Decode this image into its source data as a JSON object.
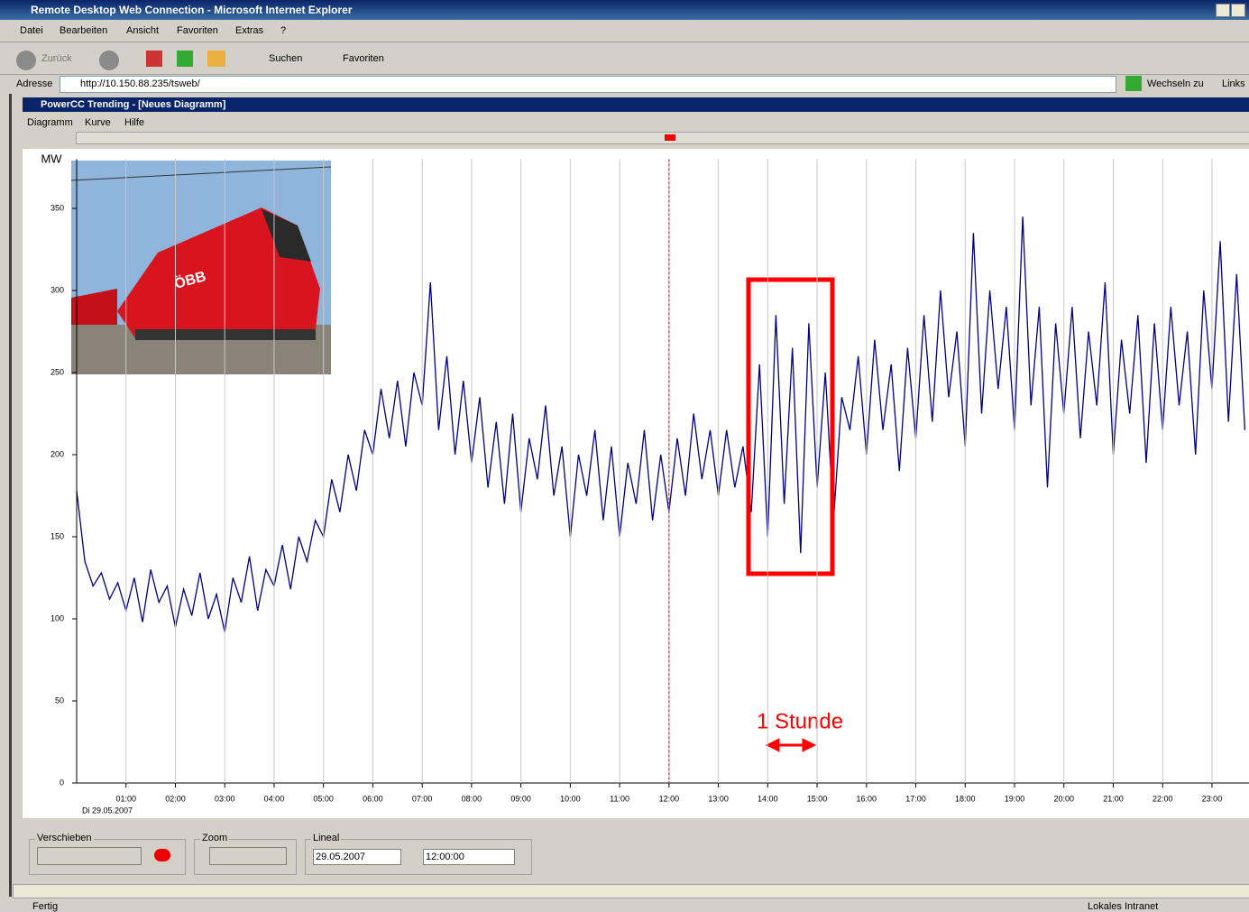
{
  "window": {
    "title": "Remote Desktop Web Connection - Microsoft Internet Explorer",
    "menu": [
      "Datei",
      "Bearbeiten",
      "Ansicht",
      "Favoriten",
      "Extras",
      "?"
    ],
    "toolbar": {
      "back": "Zurück",
      "search": "Suchen",
      "favorites": "Favoriten"
    },
    "address_label": "Adresse",
    "address": "http://10.150.88.235/tsweb/",
    "go": "Wechseln zu",
    "links": "Links",
    "status": "Fertig",
    "zone": "Lokales Intranet"
  },
  "app": {
    "title": "PowerCC Trending - [Neues Diagramm]",
    "menu": [
      "Diagramm",
      "Kurve",
      "Hilfe"
    ],
    "controls": {
      "shift": "Verschieben",
      "zoom": "Zoom",
      "ruler": "Lineal",
      "date": "29.05.2007",
      "time": "12:00:00"
    }
  },
  "chart_data": {
    "type": "line",
    "y_label": "MW",
    "x_sublabel": "Di 29.05.2007",
    "annotation": "1 Stunde",
    "color": "#000080",
    "grid": "x",
    "cursor_x": 720,
    "xlim": [
      0,
      1425
    ],
    "ylim": [
      0,
      380
    ],
    "xticks": [
      {
        "value": 60,
        "label": "01:00"
      },
      {
        "value": 120,
        "label": "02:00"
      },
      {
        "value": 180,
        "label": "03:00"
      },
      {
        "value": 240,
        "label": "04:00"
      },
      {
        "value": 300,
        "label": "05:00"
      },
      {
        "value": 360,
        "label": "06:00"
      },
      {
        "value": 420,
        "label": "07:00"
      },
      {
        "value": 480,
        "label": "08:00"
      },
      {
        "value": 540,
        "label": "09:00"
      },
      {
        "value": 600,
        "label": "10:00"
      },
      {
        "value": 660,
        "label": "11:00"
      },
      {
        "value": 720,
        "label": "12:00"
      },
      {
        "value": 780,
        "label": "13:00"
      },
      {
        "value": 840,
        "label": "14:00"
      },
      {
        "value": 900,
        "label": "15:00"
      },
      {
        "value": 960,
        "label": "16:00"
      },
      {
        "value": 1020,
        "label": "17:00"
      },
      {
        "value": 1080,
        "label": "18:00"
      },
      {
        "value": 1140,
        "label": "19:00"
      },
      {
        "value": 1200,
        "label": "20:00"
      },
      {
        "value": 1260,
        "label": "21:00"
      },
      {
        "value": 1320,
        "label": "22:00"
      },
      {
        "value": 1380,
        "label": "23:00"
      }
    ],
    "yticks": [
      0,
      50,
      100,
      150,
      200,
      250,
      300,
      350
    ],
    "x": [
      0,
      10,
      20,
      30,
      40,
      50,
      60,
      70,
      80,
      90,
      100,
      110,
      120,
      130,
      140,
      150,
      160,
      170,
      180,
      190,
      200,
      210,
      220,
      230,
      240,
      250,
      260,
      270,
      280,
      290,
      300,
      310,
      320,
      330,
      340,
      350,
      360,
      370,
      380,
      390,
      400,
      410,
      420,
      430,
      440,
      450,
      460,
      470,
      480,
      490,
      500,
      510,
      520,
      530,
      540,
      550,
      560,
      570,
      580,
      590,
      600,
      610,
      620,
      630,
      640,
      650,
      660,
      670,
      680,
      690,
      700,
      710,
      720,
      730,
      740,
      750,
      760,
      770,
      780,
      790,
      800,
      810,
      820,
      830,
      840,
      850,
      860,
      870,
      880,
      890,
      900,
      910,
      920,
      930,
      940,
      950,
      960,
      970,
      980,
      990,
      1000,
      1010,
      1020,
      1030,
      1040,
      1050,
      1060,
      1070,
      1080,
      1090,
      1100,
      1110,
      1120,
      1130,
      1140,
      1150,
      1160,
      1170,
      1180,
      1190,
      1200,
      1210,
      1220,
      1230,
      1240,
      1250,
      1260,
      1270,
      1280,
      1290,
      1300,
      1310,
      1320,
      1330,
      1340,
      1350,
      1360,
      1370,
      1380,
      1390,
      1400,
      1410,
      1420
    ],
    "values": [
      178,
      135,
      120,
      128,
      112,
      122,
      105,
      125,
      98,
      130,
      110,
      120,
      95,
      118,
      102,
      128,
      100,
      115,
      92,
      125,
      110,
      138,
      105,
      130,
      120,
      145,
      118,
      150,
      135,
      160,
      150,
      185,
      165,
      200,
      178,
      215,
      200,
      240,
      210,
      245,
      205,
      250,
      230,
      305,
      215,
      260,
      200,
      245,
      195,
      235,
      180,
      220,
      170,
      225,
      165,
      210,
      185,
      230,
      175,
      205,
      150,
      200,
      175,
      215,
      160,
      205,
      150,
      195,
      170,
      215,
      160,
      200,
      165,
      210,
      175,
      225,
      185,
      215,
      175,
      215,
      180,
      205,
      165,
      255,
      150,
      285,
      170,
      265,
      140,
      280,
      180,
      250,
      160,
      235,
      215,
      260,
      200,
      270,
      215,
      255,
      190,
      265,
      210,
      285,
      220,
      300,
      235,
      275,
      205,
      335,
      225,
      300,
      240,
      290,
      215,
      345,
      230,
      290,
      180,
      280,
      225,
      290,
      210,
      275,
      230,
      305,
      200,
      270,
      225,
      285,
      195,
      280,
      215,
      290,
      230,
      275,
      200,
      300,
      240,
      330,
      220,
      310,
      215
    ]
  }
}
